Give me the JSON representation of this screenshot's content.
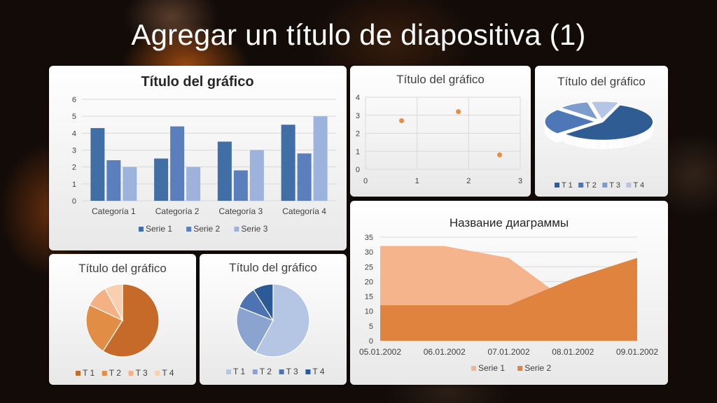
{
  "slide": {
    "title": "Agregar un título de diapositiva (1)"
  },
  "colors": {
    "blue1": "#416ea5",
    "blue2": "#5b7fbd",
    "blue3": "#9eb3dc",
    "orange1": "#c56a28",
    "orange2": "#e28d45",
    "orange3": "#f4b183",
    "orange4": "#f9cfb0",
    "pie_blue_t1": "#b4c6e3",
    "pie_blue_t2": "#8aa3cf",
    "pie_blue_t3": "#4d73b2",
    "pie_blue_t4": "#2b5a96",
    "area1": "#f6b48c",
    "area2": "#e0833f",
    "scatter": "#ed8b3e"
  },
  "chart_data": [
    {
      "type": "bar",
      "title": "Título del gráfico",
      "categories": [
        "Categoría 1",
        "Categoría 2",
        "Categoría 3",
        "Categoría 4"
      ],
      "series": [
        {
          "name": "Serie 1",
          "values": [
            4.3,
            2.5,
            3.5,
            4.5
          ]
        },
        {
          "name": "Serie 2",
          "values": [
            2.4,
            4.4,
            1.8,
            2.8
          ]
        },
        {
          "name": "Serie 3",
          "values": [
            2,
            2,
            3,
            5
          ]
        }
      ],
      "ylim": [
        0,
        6
      ],
      "yticks": [
        "0",
        "1",
        "2",
        "3",
        "4",
        "5",
        "6"
      ],
      "grid": true,
      "legend": "bottom"
    },
    {
      "type": "scatter",
      "title": "Título del gráfico",
      "x": [
        0.7,
        1.8,
        2.6
      ],
      "y": [
        2.7,
        3.2,
        0.8
      ],
      "xlim": [
        0,
        3
      ],
      "ylim": [
        0,
        4
      ],
      "xticks": [
        "0",
        "1",
        "2",
        "3"
      ],
      "yticks": [
        "0",
        "1",
        "2",
        "3",
        "4"
      ],
      "grid": true
    },
    {
      "type": "pie",
      "title": "Título del gráfico",
      "labels": [
        "T 1",
        "T 2",
        "T 3",
        "T 4"
      ],
      "values": [
        58,
        23,
        10,
        9
      ],
      "style": "3d-exploded",
      "legend": "bottom"
    },
    {
      "type": "area",
      "title": "Название диаграммы",
      "categories": [
        "05.01.2002",
        "06.01.2002",
        "07.01.2002",
        "08.01.2002",
        "09.01.2002"
      ],
      "series": [
        {
          "name": "Serie 1",
          "values": [
            32,
            32,
            28,
            12,
            15
          ]
        },
        {
          "name": "Serie 2",
          "values": [
            12,
            12,
            12,
            21,
            28
          ]
        }
      ],
      "ylim": [
        0,
        35
      ],
      "yticks": [
        "0",
        "5",
        "10",
        "15",
        "20",
        "25",
        "30",
        "35"
      ],
      "grid": true,
      "legend": "bottom"
    },
    {
      "type": "pie",
      "title": "Título del gráfico",
      "labels": [
        "T 1",
        "T 2",
        "T 3",
        "T 4"
      ],
      "values": [
        59,
        23,
        10,
        8
      ],
      "legend": "bottom"
    },
    {
      "type": "pie",
      "title": "Título del gráfico",
      "labels": [
        "T 1",
        "T 2",
        "T 3",
        "T 4"
      ],
      "values": [
        58,
        23,
        10,
        9
      ],
      "legend": "bottom"
    }
  ]
}
